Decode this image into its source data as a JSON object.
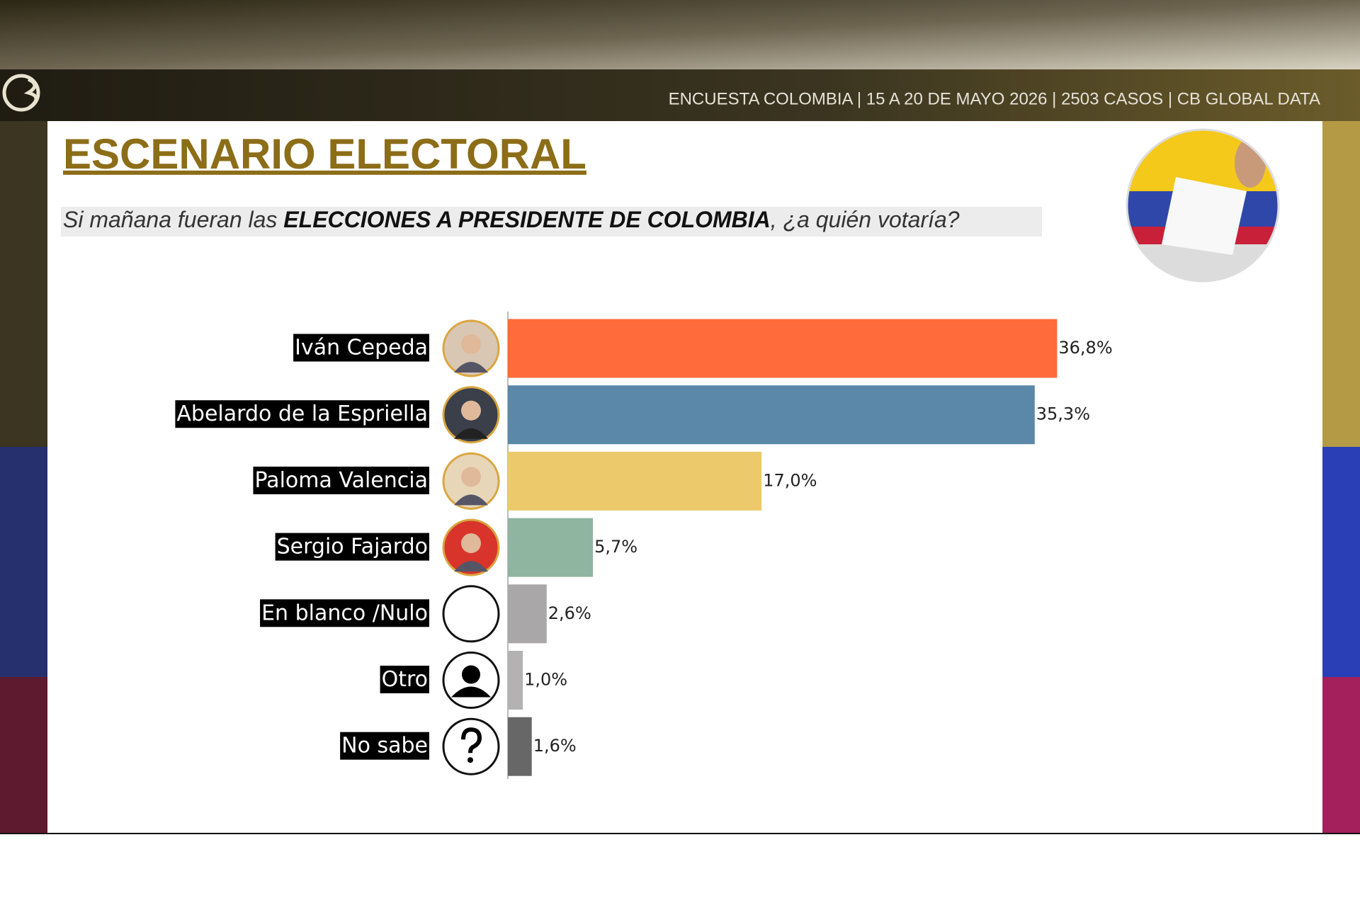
{
  "header": {
    "text": "ENCUESTA COLOMBIA | 15 A 20 DE MAYO 2026 | 2503 CASOS | CB GLOBAL DATA"
  },
  "chart_data": {
    "type": "bar",
    "title": "ESCENARIO ELECTORAL",
    "subtitle": {
      "before": "Si mañana fueran las ",
      "bold": "ELECCIONES A PRESIDENTE DE COLOMBIA",
      "after": ", ¿a quién votaría?"
    },
    "categories": [
      "Iván Cepeda",
      "Abelardo de la Espriella",
      "Paloma Valencia",
      "Sergio Fajardo",
      "En blanco /Nulo",
      "Otro",
      "No sabe"
    ],
    "values": [
      36.8,
      35.3,
      17.0,
      5.7,
      2.6,
      1.0,
      1.6
    ],
    "value_labels": [
      "36,8%",
      "35,3%",
      "17,0%",
      "5,7%",
      "2,6%",
      "1,0%",
      "1,6%"
    ],
    "colors": [
      "#ff6b3a",
      "#5b87a8",
      "#ecca6c",
      "#8fb5a0",
      "#a9a7a8",
      "#b3b1b2",
      "#676767"
    ]
  }
}
